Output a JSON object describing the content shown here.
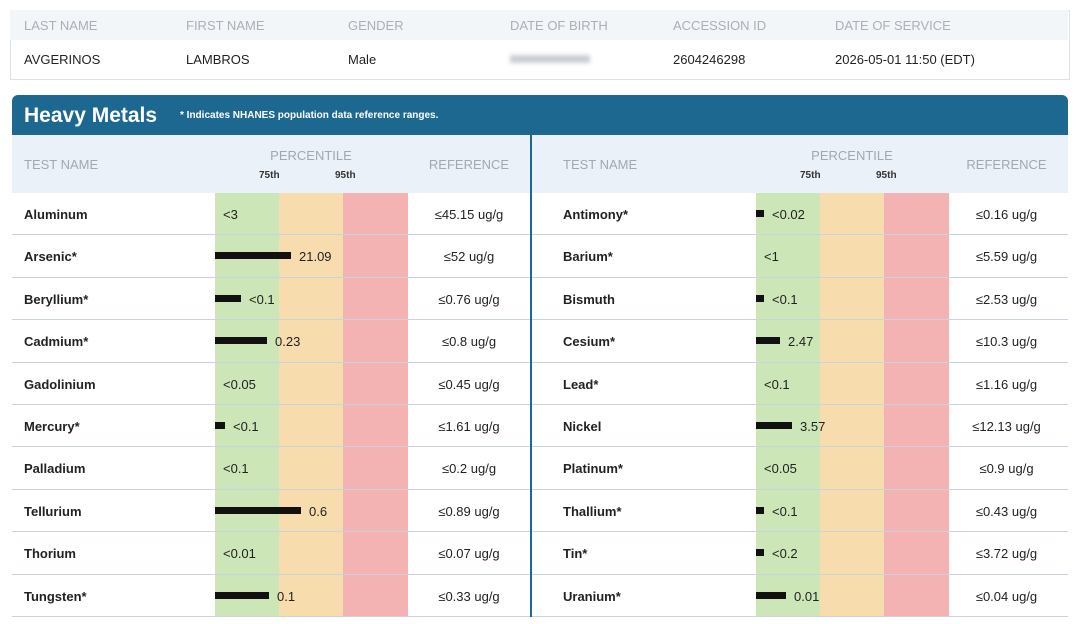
{
  "patient": {
    "fields": [
      {
        "label": "LAST NAME",
        "value": "AVGERINOS"
      },
      {
        "label": "FIRST NAME",
        "value": "LAMBROS"
      },
      {
        "label": "GENDER",
        "value": "Male"
      },
      {
        "label": "DATE OF BIRTH"
      },
      {
        "label": "ACCESSION ID",
        "value": "2604246298"
      },
      {
        "label": "DATE OF SERVICE",
        "value": "2026-05-01 11:50 (EDT)"
      }
    ]
  },
  "panel": {
    "title": "Heavy Metals",
    "note": "* Indicates NHANES population data reference ranges.",
    "columns": {
      "test": "TEST NAME",
      "percentile": "PERCENTILE",
      "p75": "75th",
      "p95": "95th",
      "reference": "REFERENCE"
    },
    "left": [
      {
        "name": "Aluminum",
        "result": "<3",
        "reference": "≤45.15 ug/g"
      },
      {
        "name": "Arsenic*",
        "result": "21.09",
        "reference": "≤52 ug/g"
      },
      {
        "name": "Beryllium*",
        "result": "<0.1",
        "reference": "≤0.76 ug/g"
      },
      {
        "name": "Cadmium*",
        "result": "0.23",
        "reference": "≤0.8 ug/g"
      },
      {
        "name": "Gadolinium",
        "result": "<0.05",
        "reference": "≤0.45 ug/g"
      },
      {
        "name": "Mercury*",
        "result": "<0.1",
        "reference": "≤1.61 ug/g"
      },
      {
        "name": "Palladium",
        "result": "<0.1",
        "reference": "≤0.2 ug/g"
      },
      {
        "name": "Tellurium",
        "result": "0.6",
        "reference": "≤0.89 ug/g"
      },
      {
        "name": "Thorium",
        "result": "<0.01",
        "reference": "≤0.07 ug/g"
      },
      {
        "name": "Tungsten*",
        "result": "0.1",
        "reference": "≤0.33 ug/g"
      }
    ],
    "right": [
      {
        "name": "Antimony*",
        "result": "<0.02",
        "reference": "≤0.16 ug/g"
      },
      {
        "name": "Barium*",
        "result": "<1",
        "reference": "≤5.59 ug/g"
      },
      {
        "name": "Bismuth",
        "result": "<0.1",
        "reference": "≤2.53 ug/g"
      },
      {
        "name": "Cesium*",
        "result": "2.47",
        "reference": "≤10.3 ug/g"
      },
      {
        "name": "Lead*",
        "result": "<0.1",
        "reference": "≤1.16 ug/g"
      },
      {
        "name": "Nickel",
        "result": "3.57",
        "reference": "≤12.13 ug/g"
      },
      {
        "name": "Platinum*",
        "result": "<0.05",
        "reference": "≤0.9 ug/g"
      },
      {
        "name": "Thallium*",
        "result": "<0.1",
        "reference": "≤0.43 ug/g"
      },
      {
        "name": "Tin*",
        "result": "<0.2",
        "reference": "≤3.72 ug/g"
      },
      {
        "name": "Uranium*",
        "result": "0.01",
        "reference": "≤0.04 ug/g"
      }
    ]
  }
}
